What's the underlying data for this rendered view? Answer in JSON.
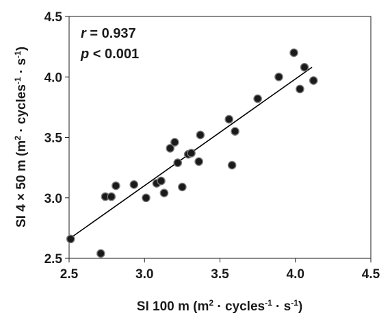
{
  "chart_data": {
    "type": "scatter",
    "title": "",
    "xlabel": {
      "prefix": "SI 100 m (m",
      "sup1": "2",
      "mid": " · cycles",
      "sup2": "-1",
      "mid2": " · s",
      "sup3": "-1",
      "suffix": ")"
    },
    "ylabel": {
      "prefix": "SI 4 × 50 m (m",
      "sup1": "2",
      "mid": " · cycles",
      "sup2": "-1",
      "mid2": " · s",
      "sup3": "-1",
      "suffix": ")"
    },
    "xlim": [
      2.5,
      4.5
    ],
    "ylim": [
      2.5,
      4.5
    ],
    "x_ticks": [
      "2.5",
      "3.0",
      "3.5",
      "4.0",
      "4.5"
    ],
    "y_ticks": [
      "2.5",
      "3.0",
      "3.5",
      "4.0",
      "4.5"
    ],
    "grid": false,
    "annotations": {
      "r_var": "r",
      "r_text": " = 0.937",
      "p_var": "p",
      "p_text": " < 0.001"
    },
    "trendline": {
      "x": [
        2.5,
        4.11
      ],
      "y": [
        2.66,
        4.08
      ]
    },
    "point_color": "#1a1a1a",
    "points": [
      {
        "x": 2.51,
        "y": 2.66
      },
      {
        "x": 2.71,
        "y": 2.54
      },
      {
        "x": 2.74,
        "y": 3.01
      },
      {
        "x": 2.78,
        "y": 3.01
      },
      {
        "x": 2.81,
        "y": 3.1
      },
      {
        "x": 2.93,
        "y": 3.11
      },
      {
        "x": 3.01,
        "y": 3.0
      },
      {
        "x": 3.08,
        "y": 3.12
      },
      {
        "x": 3.11,
        "y": 3.14
      },
      {
        "x": 3.13,
        "y": 3.04
      },
      {
        "x": 3.17,
        "y": 3.41
      },
      {
        "x": 3.2,
        "y": 3.46
      },
      {
        "x": 3.22,
        "y": 3.29
      },
      {
        "x": 3.25,
        "y": 3.09
      },
      {
        "x": 3.29,
        "y": 3.36
      },
      {
        "x": 3.31,
        "y": 3.37
      },
      {
        "x": 3.36,
        "y": 3.3
      },
      {
        "x": 3.37,
        "y": 3.52
      },
      {
        "x": 3.56,
        "y": 3.65
      },
      {
        "x": 3.58,
        "y": 3.27
      },
      {
        "x": 3.6,
        "y": 3.55
      },
      {
        "x": 3.75,
        "y": 3.82
      },
      {
        "x": 3.89,
        "y": 4.0
      },
      {
        "x": 3.99,
        "y": 4.2
      },
      {
        "x": 4.03,
        "y": 3.9
      },
      {
        "x": 4.06,
        "y": 4.08
      },
      {
        "x": 4.12,
        "y": 3.97
      }
    ]
  }
}
